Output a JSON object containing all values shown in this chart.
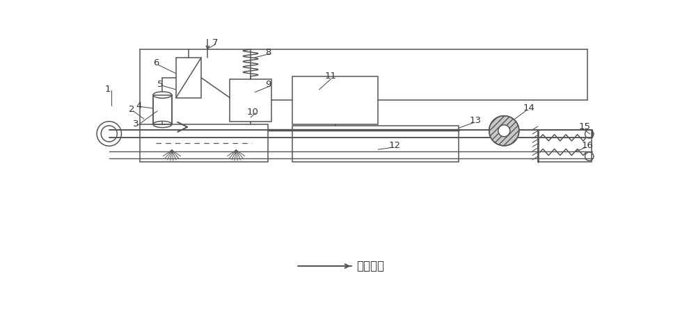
{
  "bg_color": "#ffffff",
  "line_color": "#555555",
  "figsize": [
    10.0,
    4.65
  ],
  "dpi": 100,
  "direction_label": "运行方向"
}
